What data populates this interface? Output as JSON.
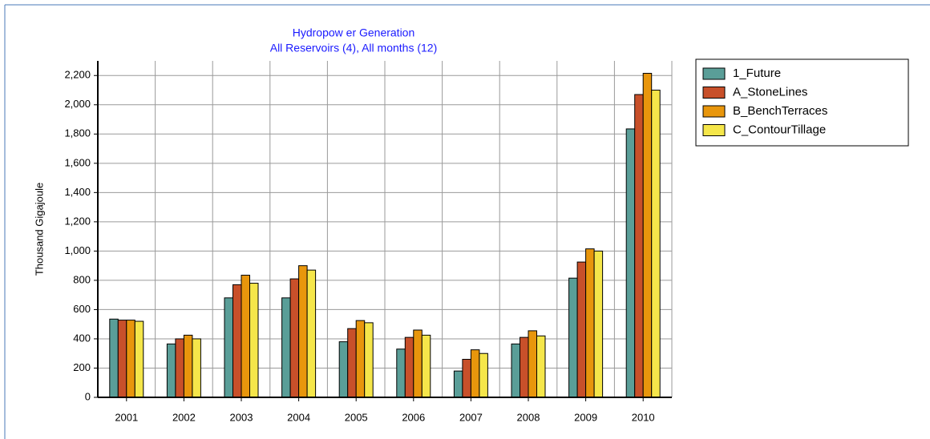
{
  "chart_data": {
    "type": "bar",
    "title": "Hydropow er Generation",
    "subtitle": "All Reservoirs (4),  All months (12)",
    "y_label": "Thousand Gigajoule",
    "categories": [
      "2001",
      "2002",
      "2003",
      "2004",
      "2005",
      "2006",
      "2007",
      "2008",
      "2009",
      "2010"
    ],
    "series": [
      {
        "name": "1_Future",
        "color": "#5a9e98",
        "values": [
          535,
          365,
          680,
          680,
          380,
          330,
          180,
          365,
          815,
          1835
        ]
      },
      {
        "name": "A_StoneLines",
        "color": "#c8502a",
        "values": [
          528,
          400,
          770,
          810,
          470,
          410,
          260,
          410,
          925,
          2070
        ]
      },
      {
        "name": "B_BenchTerraces",
        "color": "#e8960c",
        "values": [
          528,
          425,
          835,
          900,
          525,
          460,
          325,
          455,
          1015,
          2215
        ]
      },
      {
        "name": "C_ContourTillage",
        "color": "#f5e64a",
        "values": [
          520,
          400,
          780,
          870,
          510,
          425,
          300,
          420,
          1000,
          2100
        ]
      }
    ],
    "ylim": [
      0,
      2300
    ],
    "yticks": [
      0,
      200,
      400,
      600,
      800,
      {
        "value": 1000,
        "label": "1,000"
      },
      {
        "value": 1200,
        "label": "1,200"
      },
      {
        "value": 1400,
        "label": "1,400"
      },
      {
        "value": 1600,
        "label": "1,600"
      },
      {
        "value": 1800,
        "label": "1,800"
      },
      {
        "value": 2000,
        "label": "2,000"
      },
      {
        "value": 2200,
        "label": "2,200"
      }
    ],
    "grid": true,
    "legend": "right"
  }
}
